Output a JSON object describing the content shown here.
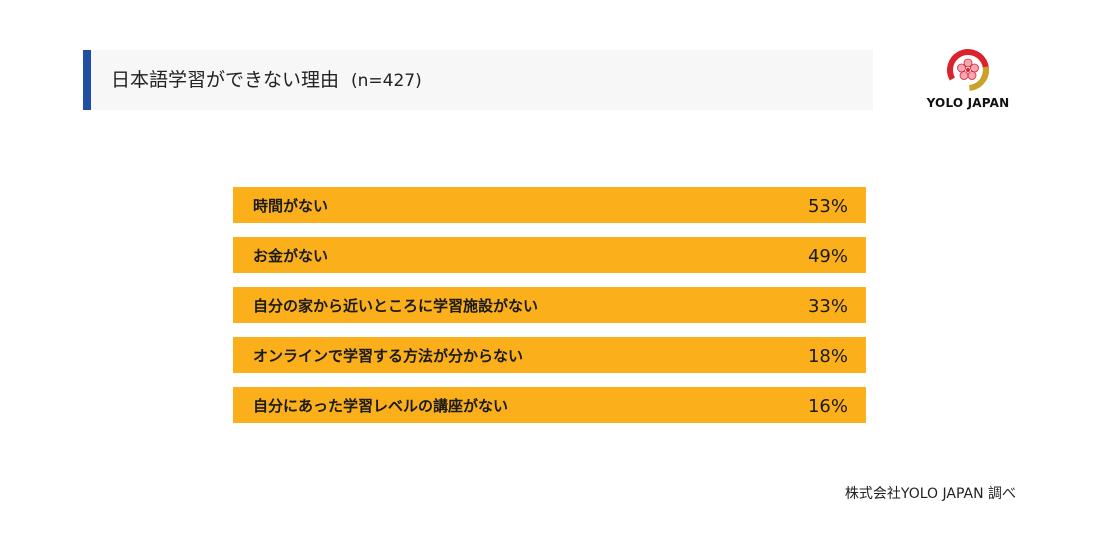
{
  "header": {
    "title": "日本語学習ができない理由",
    "sample_size": "(n=427)"
  },
  "logo": {
    "text": "YOLO JAPAN",
    "colors": [
      "#d9232d",
      "#c9a227"
    ]
  },
  "chart_data": {
    "type": "bar",
    "orientation": "horizontal",
    "categories": [
      "時間がない",
      "お金がない",
      "自分の家から近いところに学習施設がない",
      "オンラインで学習する方法が分からない",
      "自分にあった学習レベルの講座がない"
    ],
    "values": [
      53,
      49,
      33,
      18,
      16
    ],
    "value_labels": [
      "53%",
      "49%",
      "33%",
      "18%",
      "16%"
    ],
    "xlim": [
      0,
      100
    ],
    "unit": "%",
    "bar_color": "#fbb01b",
    "track_color": "#e0e0e0"
  },
  "footer": {
    "source": "株式会社YOLO JAPAN 調べ"
  }
}
